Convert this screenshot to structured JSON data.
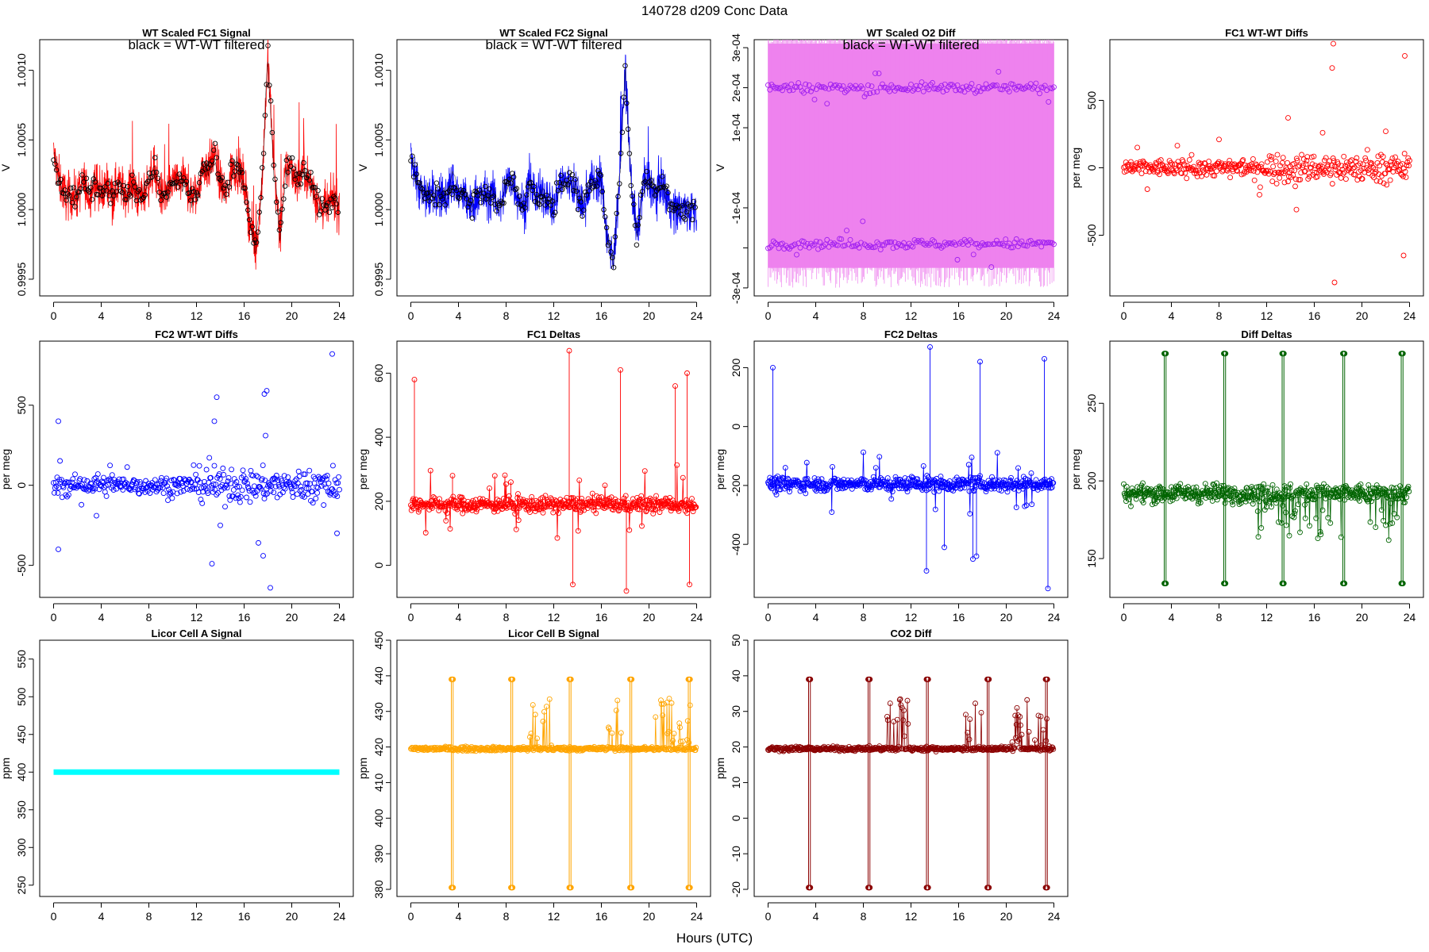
{
  "figure": {
    "title": "140728   d209   Conc Data",
    "xlabel": "Hours (UTC)",
    "note": "black = WT-WT filtered"
  },
  "chart_data": [
    {
      "id": "fc1sig",
      "type": "line",
      "title": "WT Scaled FC1 Signal",
      "ylabel": "V",
      "color": "#ff0000",
      "ylim": [
        0.99938,
        1.00122
      ],
      "yticks": [
        0.9995,
        1.0,
        1.0005,
        1.001
      ],
      "yticklabels": [
        "0.9995",
        "1.0000",
        "1.0005",
        "1.0010"
      ],
      "xlim": [
        -0.5,
        24.5
      ],
      "xticks": [
        0,
        4,
        8,
        12,
        16,
        20,
        24
      ],
      "xticklabels": [
        "0",
        "4",
        "8",
        "12",
        "16",
        "20",
        "24"
      ],
      "series": [
        {
          "name": "signal",
          "x": [
            0,
            0.5,
            1,
            1.5,
            2,
            2.5,
            3,
            3.5,
            4,
            4.5,
            5,
            5.5,
            6,
            6.5,
            7,
            7.5,
            8,
            8.5,
            9,
            9.5,
            10,
            10.5,
            11,
            11.5,
            12,
            12.5,
            13,
            13.5,
            14,
            14.5,
            15,
            15.5,
            16,
            16.5,
            17,
            17.5,
            18,
            18.5,
            19,
            19.5,
            20,
            20.5,
            21,
            21.5,
            22,
            22.5,
            23,
            23.5,
            24
          ],
          "y": [
            1.0004,
            1.0002,
            1.0001,
            1.0001,
            1.0001,
            1.0002,
            1.0001,
            1.0002,
            1.0001,
            1.0002,
            1.0001,
            1.0002,
            1.0001,
            1.0002,
            1.0001,
            1.0001,
            1.0002,
            1.0003,
            1.0001,
            1.0001,
            1.0002,
            1.0002,
            1.0002,
            1.0001,
            1.0001,
            1.0003,
            1.0003,
            1.0004,
            1.0002,
            1.0001,
            1.0003,
            1.0003,
            1.0002,
            0.9999,
            0.9997,
            1.0002,
            1.0011,
            1.0003,
            0.9998,
            1.0003,
            1.0003,
            1.0002,
            1.0003,
            1.0002,
            1.0001,
            1.0,
            1.0,
            1.0001,
            1.0
          ]
        }
      ]
    },
    {
      "id": "fc2sig",
      "type": "line",
      "title": "WT Scaled FC2 Signal",
      "ylabel": "V",
      "color": "#0000ff",
      "ylim": [
        0.99938,
        1.00122
      ],
      "yticks": [
        0.9995,
        1.0,
        1.0005,
        1.001
      ],
      "yticklabels": [
        "0.9995",
        "1.0000",
        "1.0005",
        "1.0010"
      ],
      "xlim": [
        -0.5,
        24.5
      ],
      "xticks": [
        0,
        4,
        8,
        12,
        16,
        20,
        24
      ],
      "xticklabels": [
        "0",
        "4",
        "8",
        "12",
        "16",
        "20",
        "24"
      ],
      "series": [
        {
          "name": "signal",
          "x": [
            0,
            0.5,
            1,
            1.5,
            2,
            2.5,
            3,
            3.5,
            4,
            4.5,
            5,
            5.5,
            6,
            6.5,
            7,
            7.5,
            8,
            8.5,
            9,
            9.5,
            10,
            10.5,
            11,
            11.5,
            12,
            12.5,
            13,
            13.5,
            14,
            14.5,
            15,
            15.5,
            16,
            16.5,
            17,
            17.5,
            18,
            18.5,
            19,
            19.5,
            20,
            20.5,
            21,
            21.5,
            22,
            22.5,
            23,
            23.5,
            24
          ],
          "y": [
            1.0004,
            1.0002,
            1.0001,
            1.0001,
            1.0001,
            1.0001,
            1.0001,
            1.0002,
            1.0001,
            1.0001,
            1.0,
            1.0001,
            1.0001,
            1.0001,
            1.0001,
            1.0,
            1.0002,
            1.0002,
            1.0001,
            1.0,
            1.0002,
            1.0001,
            1.0001,
            1.0001,
            1.0,
            1.0002,
            1.0002,
            1.0002,
            1.0001,
            1.0,
            1.0002,
            1.0002,
            1.0002,
            0.9998,
            0.9996,
            1.0002,
            1.001,
            1.0002,
            0.9998,
            1.0002,
            1.0002,
            1.0001,
            1.0002,
            1.0001,
            1.0,
            1.0,
            1.0,
            1.0,
            1.0
          ]
        }
      ]
    },
    {
      "id": "o2diff",
      "type": "scatter",
      "title": "WT Scaled O2 Diff",
      "ylabel": "V",
      "color": "#ee82ee",
      "marker_color": "#a020f0",
      "ylim": [
        -0.00032,
        0.00032
      ],
      "yticks": [
        -0.0003,
        -0.0002,
        -0.0001,
        0.0001,
        0.0002,
        0.0003
      ],
      "yticklabels": [
        "-3e-04",
        "",
        "-1e-04",
        "1e-04",
        "2e-04",
        "3e-04"
      ],
      "xlim": [
        -0.5,
        24.5
      ],
      "xticks": [
        0,
        4,
        8,
        12,
        16,
        20,
        24
      ],
      "xticklabels": [
        "0",
        "4",
        "8",
        "12",
        "16",
        "20",
        "24"
      ],
      "band": [
        -0.00025,
        0.00031
      ],
      "series": [
        {
          "name": "upper",
          "level": 0.0002
        },
        {
          "name": "lower",
          "level": -0.00019
        }
      ]
    },
    {
      "id": "fc1wt",
      "type": "scatter",
      "title": "FC1 WT-WT Diffs",
      "ylabel": "per meg",
      "color": "#ff0000",
      "ylim": [
        -950,
        950
      ],
      "yticks": [
        -500,
        0,
        500
      ],
      "yticklabels": [
        "-500",
        "0",
        "500"
      ],
      "xlim": [
        -0.5,
        24.5
      ],
      "xticks": [
        0,
        4,
        8,
        12,
        16,
        20,
        24
      ],
      "xticklabels": [
        "0",
        "4",
        "8",
        "12",
        "16",
        "20",
        "24"
      ],
      "outliers": {
        "x": [
          17.6,
          17.5,
          23.6,
          8,
          13.8,
          16.7,
          22,
          17.7,
          23.5,
          14.5
        ],
        "y": [
          920,
          740,
          830,
          210,
          370,
          260,
          270,
          -850,
          -650,
          -310
        ]
      }
    },
    {
      "id": "fc2wt",
      "type": "scatter",
      "title": "FC2 WT-WT Diffs",
      "ylabel": "per meg",
      "color": "#0000ff",
      "ylim": [
        -700,
        900
      ],
      "yticks": [
        -500,
        0,
        500
      ],
      "yticklabels": [
        "-500",
        "0",
        "500"
      ],
      "xlim": [
        -0.5,
        24.5
      ],
      "xticks": [
        0,
        4,
        8,
        12,
        16,
        20,
        24
      ],
      "xticklabels": [
        "0",
        "4",
        "8",
        "12",
        "16",
        "20",
        "24"
      ],
      "outliers": {
        "x": [
          23.4,
          0.4,
          0.4,
          13.7,
          13.5,
          17.7,
          17.9,
          17.8,
          13.3,
          18.2,
          17.2,
          17.6,
          14,
          23.8,
          3.6
        ],
        "y": [
          820,
          400,
          -400,
          550,
          400,
          570,
          590,
          310,
          -490,
          -640,
          -360,
          -440,
          -250,
          -300,
          -190
        ]
      }
    },
    {
      "id": "fc1d",
      "type": "line",
      "title": "FC1 Deltas",
      "ylabel": "per meg",
      "color": "#ff0000",
      "ylim": [
        -100,
        700
      ],
      "yticks": [
        0,
        200,
        400,
        600
      ],
      "yticklabels": [
        "0",
        "200",
        "400",
        "600"
      ],
      "xlim": [
        -0.5,
        24.5
      ],
      "xticks": [
        0,
        4,
        8,
        12,
        16,
        20,
        24
      ],
      "xticklabels": [
        "0",
        "4",
        "8",
        "12",
        "16",
        "20",
        "24"
      ],
      "baseline": 190,
      "spikes": {
        "x": [
          0.3,
          3.5,
          8.4,
          13.3,
          13.6,
          17.6,
          18.1,
          22.2,
          23.2,
          23.4
        ],
        "y": [
          580,
          280,
          260,
          670,
          -60,
          610,
          -80,
          560,
          600,
          -60
        ]
      }
    },
    {
      "id": "fc2d",
      "type": "line",
      "title": "FC2 Deltas",
      "ylabel": "per meg",
      "color": "#0000ff",
      "ylim": [
        -580,
        290
      ],
      "yticks": [
        -400,
        -200,
        0,
        200
      ],
      "yticklabels": [
        "-400",
        "-200",
        "0",
        "200"
      ],
      "xlim": [
        -0.5,
        24.5
      ],
      "xticks": [
        0,
        4,
        8,
        12,
        16,
        20,
        24
      ],
      "xticklabels": [
        "0",
        "4",
        "8",
        "12",
        "16",
        "20",
        "24"
      ],
      "baseline": -195,
      "spikes": {
        "x": [
          0.4,
          13.6,
          13.3,
          17.5,
          17.8,
          23.2,
          23.5,
          14.8,
          17.2
        ],
        "y": [
          200,
          270,
          -490,
          -440,
          220,
          230,
          -550,
          -410,
          -450
        ]
      }
    },
    {
      "id": "diffd",
      "type": "line",
      "title": "Diff Deltas",
      "ylabel": "per meg",
      "color": "#006400",
      "ylim": [
        125,
        290
      ],
      "yticks": [
        150,
        200,
        250
      ],
      "yticklabels": [
        "150",
        "200",
        "250"
      ],
      "xlim": [
        -0.5,
        24.5
      ],
      "xticks": [
        0,
        4,
        8,
        12,
        16,
        20,
        24
      ],
      "xticklabels": [
        "0",
        "4",
        "8",
        "12",
        "16",
        "20",
        "24"
      ],
      "baseline": 192,
      "spikes": {
        "x": [
          3.4,
          8.4,
          13.3,
          18.4,
          23.3
        ],
        "high": 282,
        "low": 134
      }
    },
    {
      "id": "licA",
      "type": "line",
      "title": "Licor Cell A Signal",
      "ylabel": "ppm",
      "color": "#00ffff",
      "ylim": [
        235,
        575
      ],
      "yticks": [
        250,
        300,
        350,
        400,
        450,
        500,
        550
      ],
      "yticklabels": [
        "250",
        "300",
        "350",
        "400",
        "450",
        "500",
        "550"
      ],
      "xlim": [
        -0.5,
        24.5
      ],
      "xticks": [
        0,
        4,
        8,
        12,
        16,
        20,
        24
      ],
      "xticklabels": [
        "0",
        "4",
        "8",
        "12",
        "16",
        "20",
        "24"
      ],
      "level": 400
    },
    {
      "id": "licB",
      "type": "line",
      "title": "Licor Cell B Signal",
      "ylabel": "ppm",
      "color": "#ffa500",
      "ylim": [
        378,
        450
      ],
      "yticks": [
        380,
        390,
        400,
        410,
        420,
        430,
        440,
        450
      ],
      "yticklabels": [
        "380",
        "390",
        "400",
        "410",
        "420",
        "430",
        "440",
        "450"
      ],
      "xlim": [
        -0.5,
        24.5
      ],
      "xticks": [
        0,
        4,
        8,
        12,
        16,
        20,
        24
      ],
      "xticklabels": [
        "0",
        "4",
        "8",
        "12",
        "16",
        "20",
        "24"
      ],
      "baseline": 419.5,
      "spikes": {
        "x": [
          3.4,
          8.4,
          13.3,
          18.4,
          23.3
        ],
        "high": 439,
        "low": 380.5
      }
    },
    {
      "id": "co2d",
      "type": "line",
      "title": "CO2 Diff",
      "ylabel": "ppm",
      "color": "#8b0000",
      "ylim": [
        -22,
        50
      ],
      "yticks": [
        -20,
        -10,
        0,
        10,
        20,
        30,
        40,
        50
      ],
      "yticklabels": [
        "-20",
        "-10",
        "0",
        "10",
        "20",
        "30",
        "40",
        "50"
      ],
      "xlim": [
        -0.5,
        24.5
      ],
      "xticks": [
        0,
        4,
        8,
        12,
        16,
        20,
        24
      ],
      "xticklabels": [
        "0",
        "4",
        "8",
        "12",
        "16",
        "20",
        "24"
      ],
      "baseline": 19.5,
      "spikes": {
        "x": [
          3.4,
          8.4,
          13.3,
          18.4,
          23.3
        ],
        "high": 39,
        "low": -19.5
      }
    }
  ]
}
